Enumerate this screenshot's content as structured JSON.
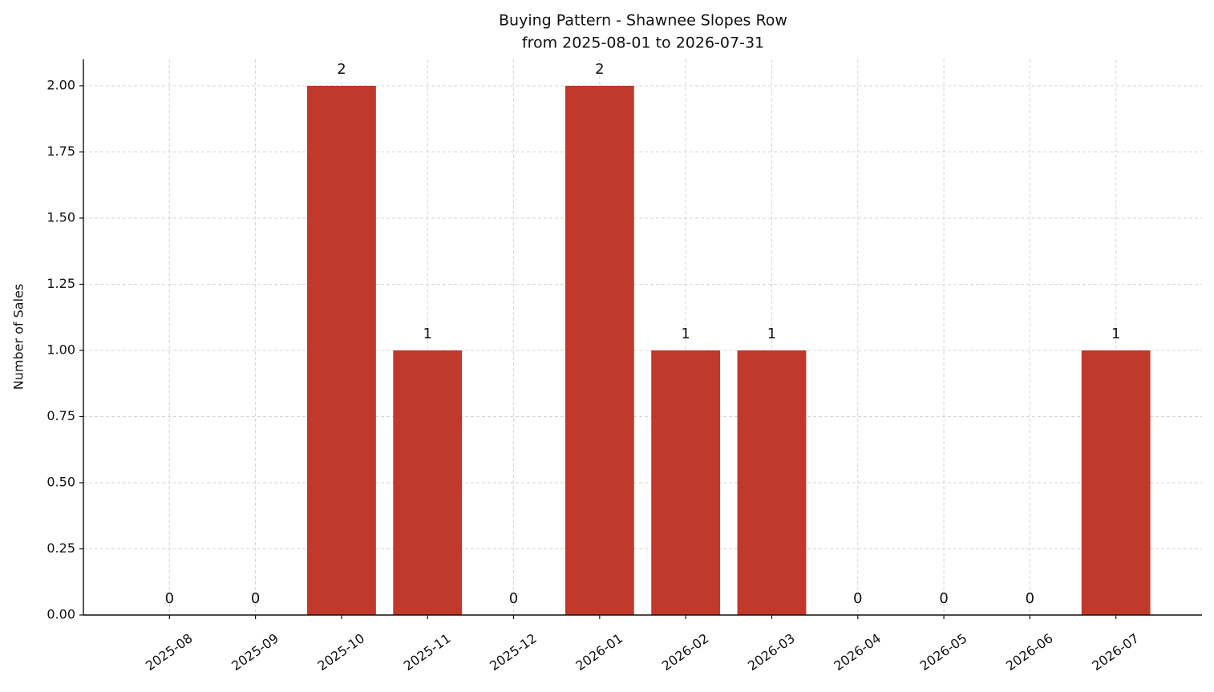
{
  "chart_data": {
    "type": "bar",
    "title": "Buying Pattern - Shawnee Slopes Row",
    "subtitle": "from 2025-08-01 to 2026-07-31",
    "y_label": "Number of Sales",
    "categories": [
      "2025-08",
      "2025-09",
      "2025-10",
      "2025-11",
      "2025-12",
      "2026-01",
      "2026-02",
      "2026-03",
      "2026-04",
      "2026-05",
      "2026-06",
      "2026-07"
    ],
    "values": [
      0,
      0,
      2,
      1,
      0,
      2,
      1,
      1,
      0,
      0,
      0,
      1
    ],
    "color": "#c0392b",
    "ylim": [
      0,
      2.1
    ],
    "yticks": [
      {
        "value": 0,
        "label": "0.00"
      },
      {
        "value": 0.25,
        "label": "0.25"
      },
      {
        "value": 0.5,
        "label": "0.50"
      },
      {
        "value": 0.75,
        "label": "0.75"
      },
      {
        "value": 1,
        "label": "1.00"
      },
      {
        "value": 1.25,
        "label": "1.25"
      },
      {
        "value": 1.5,
        "label": "1.50"
      },
      {
        "value": 1.75,
        "label": "1.75"
      },
      {
        "value": 2,
        "label": "2.00"
      }
    ],
    "grid": true
  }
}
